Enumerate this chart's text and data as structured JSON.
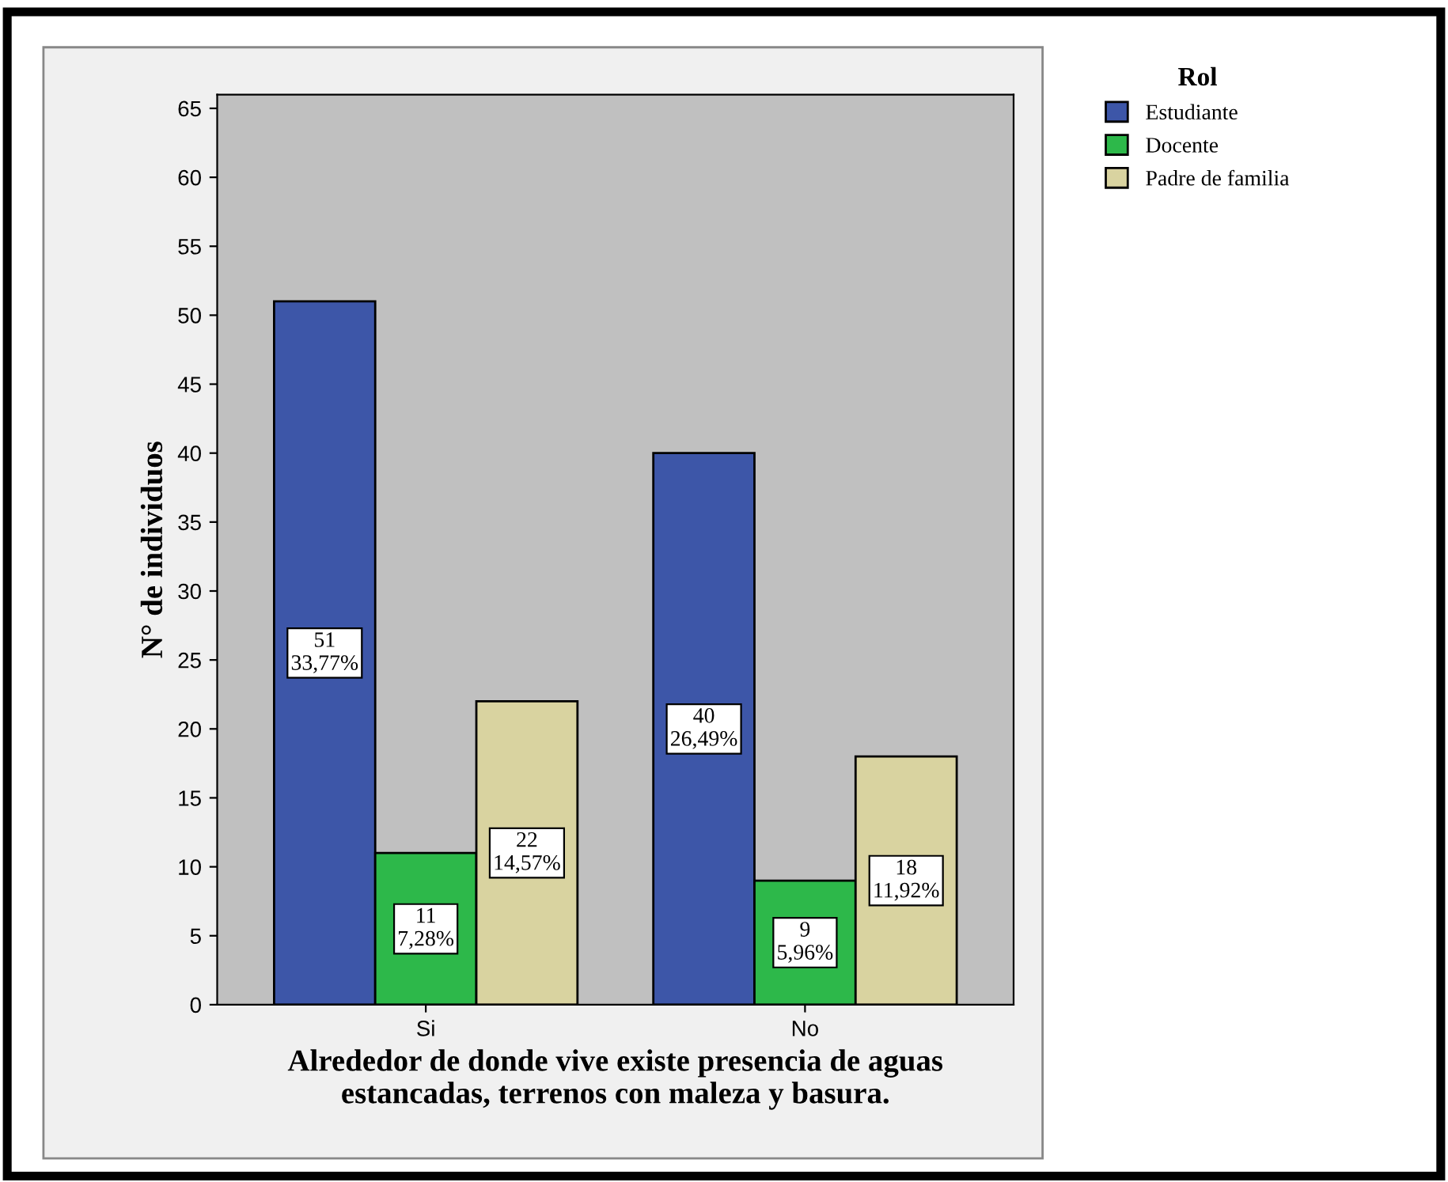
{
  "chart_data": {
    "type": "bar",
    "categories": [
      "Si",
      "No"
    ],
    "xlabel": "Alrededor de donde vive existe presencia de aguas\nestancadas, terrenos con maleza y basura.",
    "ylabel": "N° de individuos",
    "legend_title": "Rol",
    "legend": "top right",
    "grid": false,
    "ylim": [
      0,
      66
    ],
    "yticks": [
      0,
      5,
      10,
      15,
      20,
      25,
      30,
      35,
      40,
      45,
      50,
      55,
      60,
      65
    ],
    "series": [
      {
        "name": "Estudiante",
        "color": "#3d56a8",
        "values": [
          51,
          40
        ],
        "value_labels": [
          "51\n33,77%",
          "40\n26,49%"
        ]
      },
      {
        "name": "Docente",
        "color": "#2db84a",
        "values": [
          11,
          9
        ],
        "value_labels": [
          "11\n7,28%",
          "9\n5,96%"
        ]
      },
      {
        "name": "Padre de familia",
        "color": "#d9d3a0",
        "values": [
          22,
          18
        ],
        "value_labels": [
          "22\n14,57%",
          "18\n11,92%"
        ]
      }
    ]
  }
}
